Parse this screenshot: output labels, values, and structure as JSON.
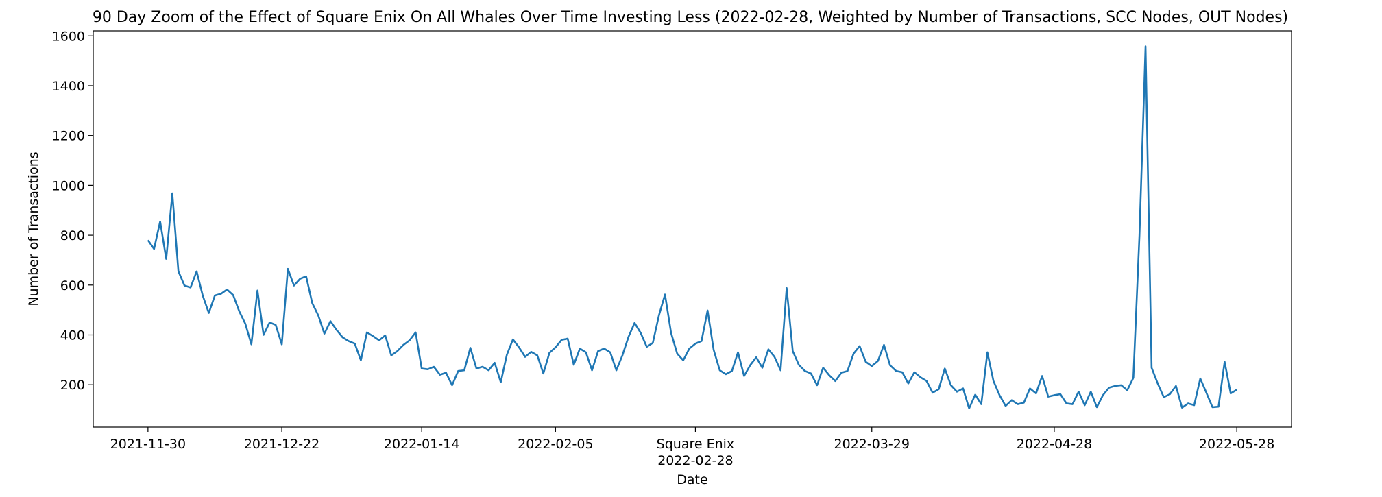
{
  "chart_data": {
    "type": "line",
    "title": "90 Day Zoom of the Effect of Square Enix On All Whales Over Time Investing Less (2022-02-28, Weighted by Number of Transactions, SCC Nodes, OUT Nodes)",
    "xlabel": "Date",
    "ylabel": "Number of Transactions",
    "x_start": "2021-11-30",
    "x_end": "2022-05-28",
    "xlim": [
      "2021-11-21",
      "2022-06-06"
    ],
    "ylim": [
      30,
      1620
    ],
    "grid": false,
    "legend": "none",
    "line_color": "#1f77b4",
    "x_ticks": [
      {
        "date": "2021-11-30",
        "label": "2021-11-30"
      },
      {
        "date": "2021-12-22",
        "label": "2021-12-22"
      },
      {
        "date": "2022-01-14",
        "label": "2022-01-14"
      },
      {
        "date": "2022-02-05",
        "label": "2022-02-05"
      },
      {
        "date": "2022-02-28",
        "label": "Square Enix",
        "label2": "2022-02-28"
      },
      {
        "date": "2022-03-29",
        "label": "2022-03-29"
      },
      {
        "date": "2022-04-28",
        "label": "2022-04-28"
      },
      {
        "date": "2022-05-28",
        "label": "2022-05-28"
      }
    ],
    "y_ticks": [
      200,
      400,
      600,
      800,
      1000,
      1200,
      1400,
      1600
    ],
    "values": [
      780,
      745,
      855,
      705,
      968,
      655,
      598,
      590,
      655,
      558,
      488,
      558,
      565,
      582,
      560,
      495,
      445,
      362,
      578,
      400,
      450,
      440,
      362,
      665,
      598,
      625,
      635,
      528,
      478,
      405,
      455,
      420,
      390,
      375,
      365,
      298,
      410,
      395,
      378,
      398,
      318,
      335,
      360,
      378,
      410,
      265,
      262,
      272,
      240,
      248,
      198,
      255,
      258,
      348,
      265,
      272,
      258,
      288,
      210,
      320,
      382,
      350,
      312,
      332,
      318,
      245,
      328,
      350,
      380,
      385,
      280,
      345,
      330,
      258,
      335,
      345,
      330,
      258,
      318,
      392,
      448,
      408,
      352,
      368,
      478,
      562,
      408,
      325,
      298,
      345,
      365,
      375,
      498,
      340,
      258,
      242,
      255,
      330,
      235,
      278,
      310,
      268,
      342,
      312,
      258,
      588,
      335,
      280,
      255,
      245,
      198,
      268,
      238,
      215,
      248,
      255,
      325,
      355,
      292,
      275,
      295,
      360,
      278,
      255,
      250,
      205,
      250,
      230,
      215,
      168,
      182,
      265,
      198,
      172,
      185,
      105,
      160,
      122,
      330,
      215,
      158,
      115,
      138,
      122,
      128,
      185,
      165,
      235,
      152,
      158,
      162,
      125,
      122,
      172,
      118,
      172,
      110,
      158,
      188,
      195,
      198,
      178,
      228,
      800,
      1558,
      268,
      205,
      150,
      162,
      195,
      108,
      125,
      118,
      225,
      168,
      110,
      112,
      292,
      165,
      180
    ]
  }
}
